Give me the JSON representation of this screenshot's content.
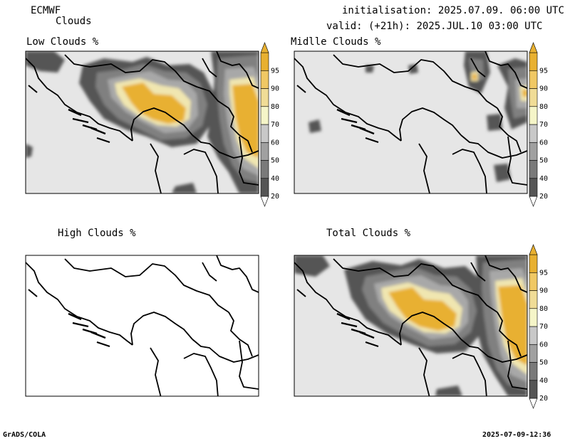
{
  "header": {
    "model": "ECMWF",
    "product": "Clouds",
    "init_label": "initialisation:",
    "init_value": "2025.07.09. 06:00 UTC",
    "valid_label": "valid: (+21h):",
    "valid_value": "2025.JUL.10 03:00 UTC"
  },
  "panels": [
    {
      "id": "low",
      "title": "Low Clouds %"
    },
    {
      "id": "middle",
      "title": "Midlle Clouds %"
    },
    {
      "id": "high",
      "title": "High Clouds %"
    },
    {
      "id": "total",
      "title": "Total Clouds %"
    }
  ],
  "colorbar": {
    "levels": [
      "20",
      "40",
      "50",
      "60",
      "70",
      "80",
      "90",
      "95"
    ],
    "colors": [
      "#555555",
      "#7a7a7a",
      "#a0a0a0",
      "#c8c8c8",
      "#f5f5c8",
      "#f0dc96",
      "#f0c864",
      "#e8b030"
    ]
  },
  "footer": {
    "left": "GrADS/COLA",
    "right": "2025-07-09-12:36"
  }
}
